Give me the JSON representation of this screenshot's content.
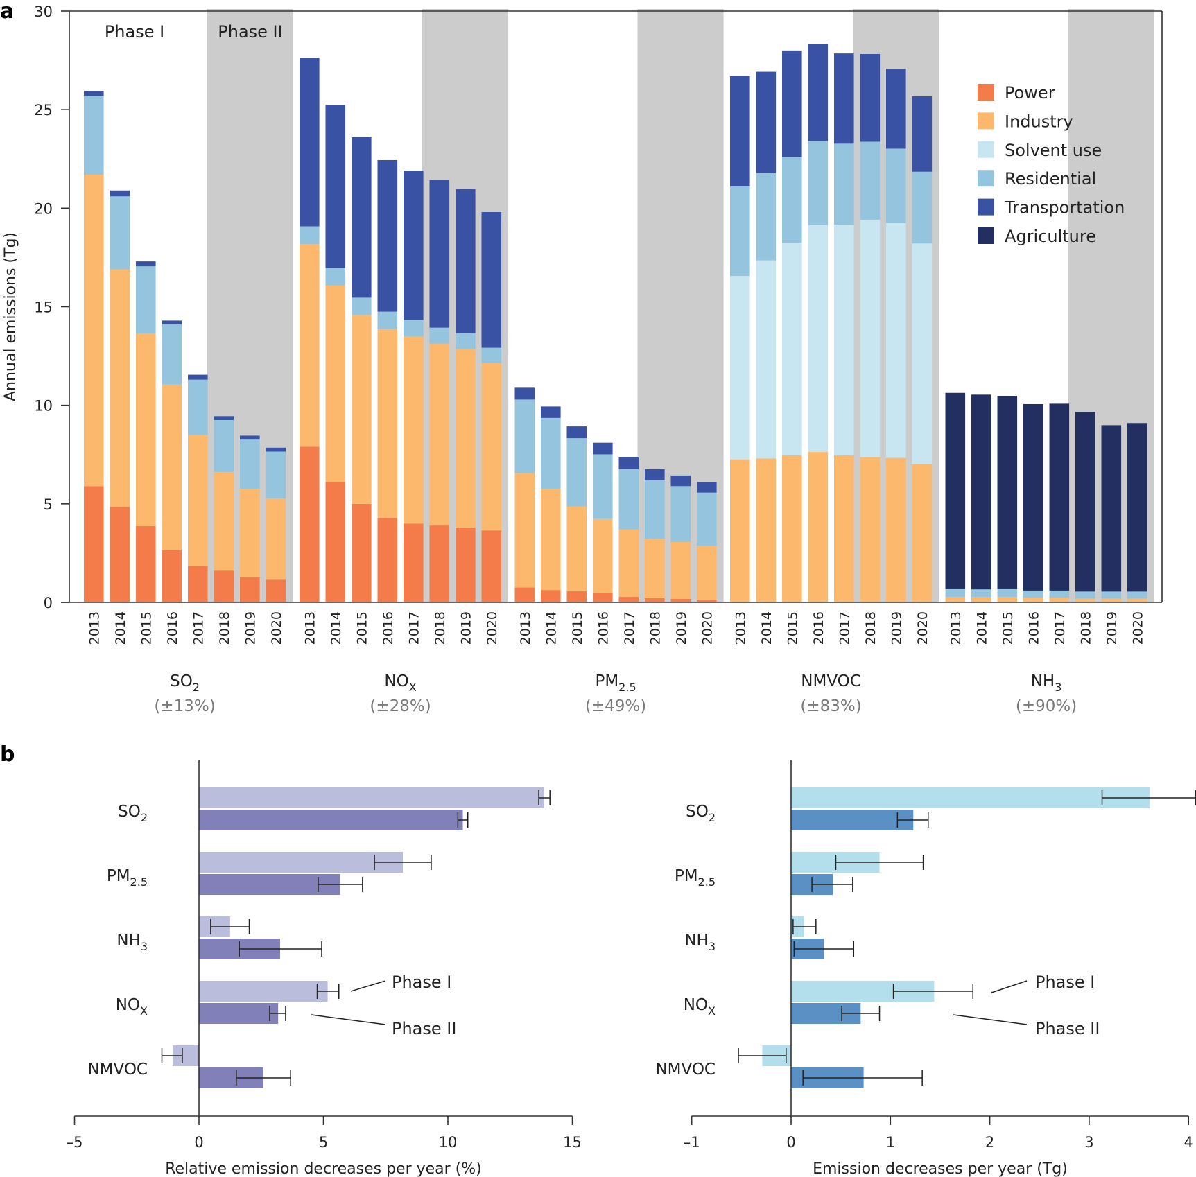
{
  "chart_data": [
    {
      "panel": "a",
      "type": "bar",
      "stacked": true,
      "ylabel": "Annual emissions (Tg)",
      "ylim": [
        0,
        30
      ],
      "yticks": [
        0,
        5,
        10,
        15,
        20,
        25,
        30
      ],
      "phase_labels": [
        "Phase I",
        "Phase II"
      ],
      "phase_ii_years": [
        "2018",
        "2019",
        "2020"
      ],
      "sectors": [
        {
          "name": "Power",
          "color": "#f47b4a"
        },
        {
          "name": "Industry",
          "color": "#fcb86d"
        },
        {
          "name": "Solvent use",
          "color": "#c8e6f1"
        },
        {
          "name": "Residential",
          "color": "#94c4de"
        },
        {
          "name": "Transportation",
          "color": "#3a52a3"
        },
        {
          "name": "Agriculture",
          "color": "#232f60"
        }
      ],
      "legend_position": "top-right",
      "years": [
        "2013",
        "2014",
        "2015",
        "2016",
        "2017",
        "2018",
        "2019",
        "2020"
      ],
      "groups": [
        {
          "name": "SO",
          "sub": "2",
          "uncertainty": "(±13%)",
          "series": {
            "Power": [
              5.9,
              4.85,
              3.87,
              2.64,
              1.85,
              1.61,
              1.28,
              1.15
            ],
            "Industry": [
              15.8,
              12.05,
              9.78,
              8.41,
              6.64,
              5.01,
              4.49,
              4.12
            ],
            "Solvent use": [
              0,
              0,
              0,
              0,
              0,
              0,
              0,
              0
            ],
            "Residential": [
              4.0,
              3.7,
              3.4,
              3.05,
              2.81,
              2.63,
              2.49,
              2.38
            ],
            "Transportation": [
              0.25,
              0.3,
              0.25,
              0.2,
              0.25,
              0.2,
              0.2,
              0.2
            ],
            "Agriculture": [
              0,
              0,
              0,
              0,
              0,
              0,
              0,
              0
            ]
          }
        },
        {
          "name": "NO",
          "sub": "X",
          "uncertainty": "(±28%)",
          "series": {
            "Power": [
              7.9,
              6.1,
              5.0,
              4.3,
              4.0,
              3.9,
              3.8,
              3.65
            ],
            "Industry": [
              10.27,
              9.99,
              9.58,
              9.57,
              9.49,
              9.23,
              9.05,
              8.5
            ],
            "Solvent use": [
              0,
              0,
              0,
              0,
              0,
              0,
              0,
              0
            ],
            "Residential": [
              0.91,
              0.88,
              0.88,
              0.88,
              0.84,
              0.81,
              0.81,
              0.77
            ],
            "Transportation": [
              8.56,
              8.28,
              8.14,
              7.69,
              7.57,
              7.49,
              7.32,
              6.88
            ],
            "Agriculture": [
              0,
              0,
              0,
              0,
              0,
              0,
              0,
              0
            ]
          }
        },
        {
          "name": "PM",
          "sub": "2.5",
          "uncertainty": "(±49%)",
          "series": {
            "Power": [
              0.76,
              0.63,
              0.57,
              0.46,
              0.28,
              0.21,
              0.18,
              0.14
            ],
            "Industry": [
              5.8,
              5.14,
              4.3,
              3.77,
              3.43,
              3.03,
              2.89,
              2.74
            ],
            "Solvent use": [
              0,
              0,
              0,
              0,
              0,
              0,
              0,
              0
            ],
            "Residential": [
              3.73,
              3.59,
              3.46,
              3.28,
              3.05,
              2.96,
              2.83,
              2.69
            ],
            "Transportation": [
              0.6,
              0.58,
              0.6,
              0.59,
              0.59,
              0.56,
              0.54,
              0.53
            ],
            "Agriculture": [
              0,
              0,
              0,
              0,
              0,
              0,
              0,
              0
            ]
          }
        },
        {
          "name": "NMVOC",
          "sub": "",
          "uncertainty": "(±83%)",
          "series": {
            "Power": [
              0,
              0,
              0,
              0,
              0,
              0,
              0,
              0
            ],
            "Industry": [
              7.26,
              7.3,
              7.46,
              7.63,
              7.46,
              7.36,
              7.33,
              7.01
            ],
            "Solvent use": [
              9.3,
              10.05,
              10.78,
              11.51,
              11.7,
              12.06,
              11.92,
              11.2
            ],
            "Residential": [
              4.54,
              4.43,
              4.36,
              4.27,
              4.11,
              3.95,
              3.77,
              3.64
            ],
            "Transportation": [
              5.6,
              5.14,
              5.4,
              4.92,
              4.58,
              4.45,
              4.06,
              3.83
            ],
            "Agriculture": [
              0,
              0,
              0,
              0,
              0,
              0,
              0,
              0
            ]
          }
        },
        {
          "name": "NH",
          "sub": "3",
          "uncertainty": "(±90%)",
          "series": {
            "Power": [
              0,
              0,
              0,
              0,
              0,
              0,
              0,
              0
            ],
            "Industry": [
              0.28,
              0.28,
              0.28,
              0.24,
              0.24,
              0.2,
              0.2,
              0.2
            ],
            "Solvent use": [
              0,
              0,
              0,
              0,
              0,
              0,
              0,
              0
            ],
            "Residential": [
              0.39,
              0.38,
              0.39,
              0.36,
              0.36,
              0.35,
              0.35,
              0.35
            ],
            "Transportation": [
              0,
              0,
              0,
              0,
              0,
              0,
              0,
              0
            ],
            "Agriculture": [
              9.96,
              9.88,
              9.81,
              9.46,
              9.48,
              9.11,
              8.44,
              8.55
            ]
          }
        }
      ]
    },
    {
      "panel": "b-left",
      "type": "bar",
      "orientation": "horizontal",
      "xlabel": "Relative emission decreases per year (%)",
      "xlim": [
        -5,
        15
      ],
      "xticks": [
        -5,
        0,
        5,
        10,
        15
      ],
      "categories": [
        {
          "name": "SO",
          "sub": "2"
        },
        {
          "name": "PM",
          "sub": "2.5"
        },
        {
          "name": "NH",
          "sub": "3"
        },
        {
          "name": "NO",
          "sub": "X"
        },
        {
          "name": "NMVOC",
          "sub": ""
        }
      ],
      "series": [
        {
          "name": "Phase I",
          "color": "#bbbddc",
          "values": [
            13.87,
            8.19,
            1.25,
            5.17,
            -1.06
          ],
          "err_low": [
            13.65,
            7.05,
            0.47,
            4.75,
            -1.49
          ],
          "err_high": [
            14.1,
            9.33,
            2.02,
            5.62,
            -0.67
          ]
        },
        {
          "name": "Phase II",
          "color": "#8280b8",
          "values": [
            10.6,
            5.67,
            3.26,
            3.18,
            2.59
          ],
          "err_low": [
            10.4,
            4.79,
            1.62,
            2.84,
            1.5
          ],
          "err_high": [
            10.8,
            6.57,
            4.93,
            3.48,
            3.68
          ]
        }
      ],
      "annotations": [
        "Phase I",
        "Phase II"
      ]
    },
    {
      "panel": "b-right",
      "type": "bar",
      "orientation": "horizontal",
      "xlabel": "Emission decreases per year (Tg)",
      "xlim": [
        -1,
        4
      ],
      "xticks": [
        -1,
        0,
        1,
        2,
        3,
        4
      ],
      "categories": [
        {
          "name": "SO",
          "sub": "2"
        },
        {
          "name": "PM",
          "sub": "2.5"
        },
        {
          "name": "NH",
          "sub": "3"
        },
        {
          "name": "NO",
          "sub": "X"
        },
        {
          "name": "NMVOC",
          "sub": ""
        }
      ],
      "series": [
        {
          "name": "Phase I",
          "color": "#b3deeb",
          "values": [
            3.61,
            0.89,
            0.13,
            1.44,
            -0.29
          ],
          "err_low": [
            3.13,
            0.45,
            0.02,
            1.03,
            -0.53
          ],
          "err_high": [
            4.07,
            1.33,
            0.25,
            1.83,
            -0.05
          ]
        },
        {
          "name": "Phase II",
          "color": "#5b90c4",
          "values": [
            1.23,
            0.42,
            0.33,
            0.7,
            0.73
          ],
          "err_low": [
            1.07,
            0.21,
            0.03,
            0.51,
            0.12
          ],
          "err_high": [
            1.38,
            0.62,
            0.63,
            0.89,
            1.32
          ]
        }
      ],
      "annotations": [
        "Phase I",
        "Phase II"
      ]
    }
  ],
  "panel_letters": [
    "a",
    "b"
  ],
  "shade_color": "#cccccc"
}
